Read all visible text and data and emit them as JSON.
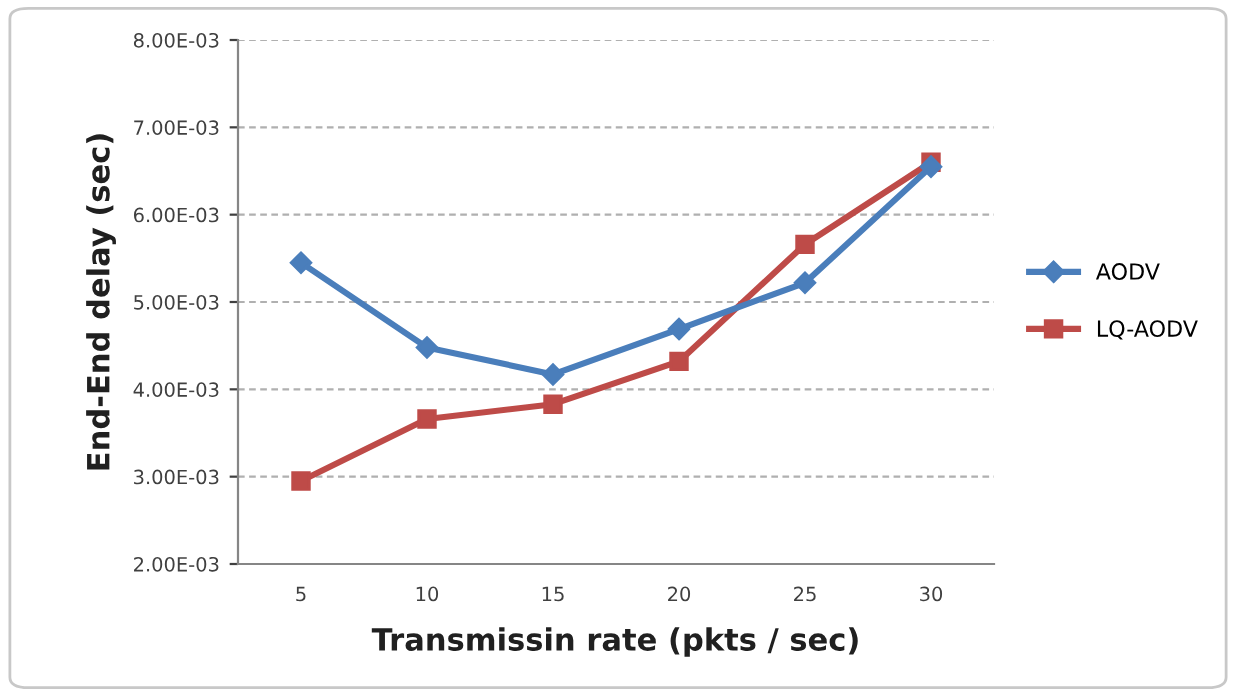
{
  "chart_data": {
    "type": "line",
    "xlabel": "Transmissin rate (pkts / sec)",
    "ylabel": "End-End delay (sec)",
    "categories": [
      "5",
      "10",
      "15",
      "20",
      "25",
      "30"
    ],
    "series": [
      {
        "name": "AODV",
        "color": "#4a7ebb",
        "marker": "diamond",
        "values": [
          0.00545,
          0.00448,
          0.00417,
          0.00469,
          0.00522,
          0.00655
        ]
      },
      {
        "name": "LQ-AODV",
        "color": "#be4b48",
        "marker": "square",
        "values": [
          0.00295,
          0.00366,
          0.00383,
          0.00432,
          0.00566,
          0.0066
        ]
      }
    ],
    "ylim": [
      0.002,
      0.008
    ],
    "yticks": [
      {
        "value": 0.002,
        "label": "2.00E-03"
      },
      {
        "value": 0.003,
        "label": "3.00E-03"
      },
      {
        "value": 0.004,
        "label": "4.00E-03"
      },
      {
        "value": 0.005,
        "label": "5.00E-03"
      },
      {
        "value": 0.006,
        "label": "6.00E-03"
      },
      {
        "value": 0.007,
        "label": "7.00E-03"
      },
      {
        "value": 0.008,
        "label": "8.00E-03"
      }
    ],
    "grid": "y",
    "legend": "right"
  }
}
